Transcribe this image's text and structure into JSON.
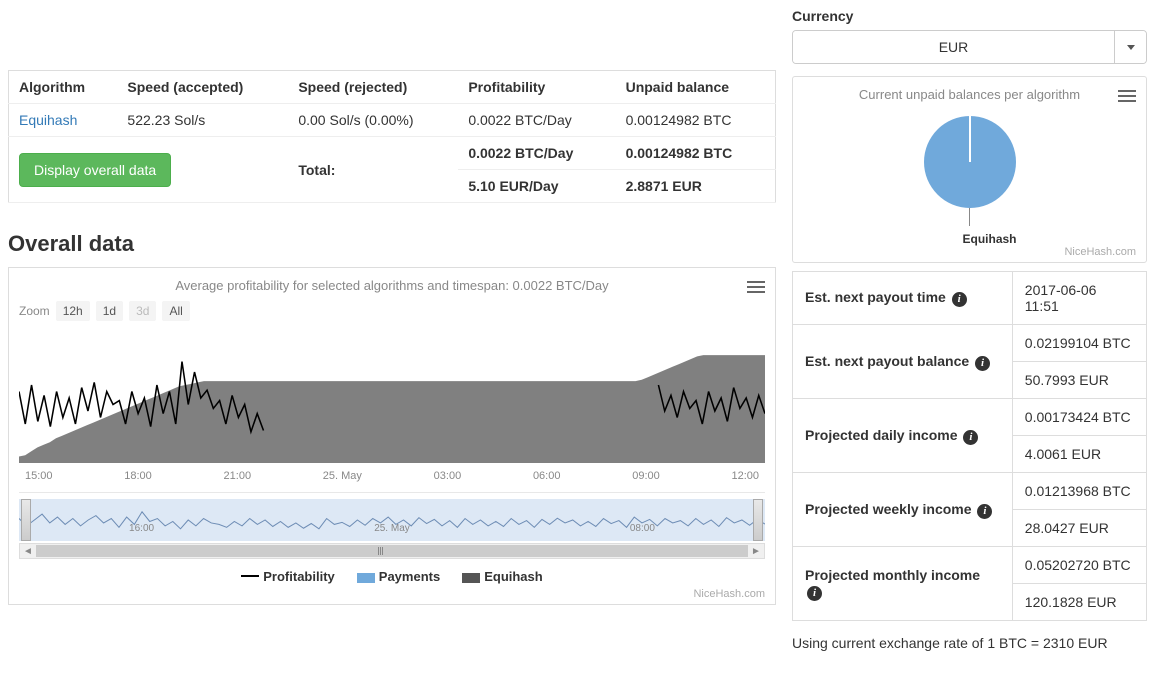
{
  "currency": {
    "label": "Currency",
    "selected": "EUR"
  },
  "algo_table": {
    "headers": [
      "Algorithm",
      "Speed (accepted)",
      "Speed (rejected)",
      "Profitability",
      "Unpaid balance"
    ],
    "row": {
      "algorithm": "Equihash",
      "speed_accepted": "522.23 Sol/s",
      "speed_rejected": "0.00 Sol/s (0.00%)",
      "profitability": "0.0022 BTC/Day",
      "unpaid_balance": "0.00124982 BTC"
    },
    "button_label": "Display overall data",
    "total_label": "Total:",
    "total_profit_btc": "0.0022 BTC/Day",
    "total_balance_btc": "0.00124982 BTC",
    "total_profit_eur": "5.10 EUR/Day",
    "total_balance_eur": "2.8871 EUR"
  },
  "pie_card": {
    "title": "Current unpaid balances per algorithm",
    "slice_color": "#70a9db",
    "slice_label": "Equihash",
    "brand": "NiceHash.com"
  },
  "overall": {
    "section_title": "Overall data",
    "chart_title": "Average profitability for selected algorithms and timespan: 0.0022 BTC/Day",
    "zoom_label": "Zoom",
    "zoom_buttons": [
      "12h",
      "1d",
      "3d",
      "All"
    ],
    "x_ticks": [
      "15:00",
      "18:00",
      "21:00",
      "25. May",
      "03:00",
      "06:00",
      "09:00",
      "12:00"
    ],
    "nav_ticks": [
      "16:00",
      "25. May",
      "08:00"
    ],
    "legend": {
      "profitability": "Profitability",
      "payments": "Payments",
      "equihash": "Equihash"
    },
    "brand": "NiceHash.com",
    "colors": {
      "line": "#000000",
      "area": "#6a6a6a",
      "nav_bg": "#dde8f5",
      "nav_line": "#6e8db5"
    },
    "profitability_series": [
      0.55,
      0.3,
      0.6,
      0.32,
      0.52,
      0.28,
      0.55,
      0.35,
      0.5,
      0.3,
      0.58,
      0.4,
      0.62,
      0.35,
      0.55,
      0.45,
      0.48,
      0.3,
      0.55,
      0.38,
      0.5,
      0.28,
      0.6,
      0.38,
      0.55,
      0.3,
      0.78,
      0.45,
      0.7,
      0.5,
      0.56,
      0.42,
      0.48,
      0.3,
      0.52,
      0.35,
      0.45,
      0.24,
      0.38,
      0.25,
      0,
      0,
      0,
      0,
      0,
      0,
      0,
      0,
      0,
      0,
      0,
      0,
      0,
      0,
      0,
      0,
      0,
      0,
      0,
      0,
      0,
      0,
      0,
      0,
      0,
      0,
      0,
      0,
      0,
      0,
      0,
      0,
      0,
      0,
      0,
      0,
      0,
      0,
      0,
      0,
      0,
      0,
      0,
      0,
      0,
      0,
      0,
      0,
      0,
      0,
      0,
      0,
      0,
      0,
      0,
      0,
      0,
      0,
      0,
      0,
      0,
      0,
      0.6,
      0.4,
      0.52,
      0.35,
      0.55,
      0.42,
      0.48,
      0.3,
      0.55,
      0.4,
      0.5,
      0.32,
      0.58,
      0.42,
      0.5,
      0.35,
      0.52,
      0.38
    ],
    "equihash_area": [
      0.05,
      0.06,
      0.09,
      0.12,
      0.14,
      0.16,
      0.19,
      0.21,
      0.23,
      0.25,
      0.27,
      0.29,
      0.31,
      0.33,
      0.35,
      0.37,
      0.39,
      0.41,
      0.43,
      0.45,
      0.47,
      0.49,
      0.51,
      0.53,
      0.55,
      0.57,
      0.59,
      0.6,
      0.61,
      0.62,
      0.63,
      0.63,
      0.63,
      0.63,
      0.63,
      0.63,
      0.63,
      0.63,
      0.63,
      0.63,
      0.63,
      0.63,
      0.63,
      0.63,
      0.63,
      0.63,
      0.63,
      0.63,
      0.63,
      0.63,
      0.63,
      0.63,
      0.63,
      0.63,
      0.63,
      0.63,
      0.63,
      0.63,
      0.63,
      0.63,
      0.63,
      0.63,
      0.63,
      0.63,
      0.63,
      0.63,
      0.63,
      0.63,
      0.63,
      0.63,
      0.63,
      0.63,
      0.63,
      0.63,
      0.63,
      0.63,
      0.63,
      0.63,
      0.63,
      0.63,
      0.63,
      0.63,
      0.63,
      0.63,
      0.63,
      0.63,
      0.63,
      0.63,
      0.63,
      0.63,
      0.63,
      0.63,
      0.63,
      0.63,
      0.63,
      0.63,
      0.63,
      0.63,
      0.63,
      0.63,
      0.63,
      0.64,
      0.66,
      0.68,
      0.7,
      0.72,
      0.74,
      0.76,
      0.78,
      0.8,
      0.82,
      0.83,
      0.83,
      0.83,
      0.83,
      0.83,
      0.83,
      0.83,
      0.83,
      0.83,
      0.83,
      0.83
    ],
    "nav_series": [
      0.55,
      0.3,
      0.5,
      0.7,
      0.4,
      0.6,
      0.35,
      0.55,
      0.3,
      0.5,
      0.65,
      0.4,
      0.55,
      0.25,
      0.6,
      0.35,
      0.78,
      0.45,
      0.55,
      0.3,
      0.45,
      0.2,
      0.5,
      0.3,
      0.55,
      0.4,
      0.35,
      0.25,
      0.45,
      0.3,
      0.55,
      0.35,
      0.5,
      0.28,
      0.45,
      0.25,
      0.4,
      0.22,
      0.38,
      0.2,
      0.55,
      0.35,
      0.42,
      0.28,
      0.5,
      0.32,
      0.55,
      0.4,
      0.6,
      0.35,
      0.5,
      0.3,
      0.58,
      0.38,
      0.52,
      0.3,
      0.48,
      0.25,
      0.55,
      0.35,
      0.5,
      0.3,
      0.45,
      0.28,
      0.55,
      0.35,
      0.48,
      0.25,
      0.52,
      0.35,
      0.56,
      0.4,
      0.5,
      0.3,
      0.45,
      0.28,
      0.55,
      0.38,
      0.48,
      0.25,
      0.6,
      0.4,
      0.52,
      0.3,
      0.55,
      0.4,
      0.48,
      0.3,
      0.55,
      0.35,
      0.5,
      0.28,
      0.58,
      0.4,
      0.5,
      0.32,
      0.52,
      0.36
    ]
  },
  "projections": {
    "rows": [
      {
        "label": "Est. next payout time",
        "values": [
          "2017-06-06 11:51"
        ]
      },
      {
        "label": "Est. next payout balance",
        "values": [
          "0.02199104 BTC",
          "50.7993 EUR"
        ]
      },
      {
        "label": "Projected daily income",
        "values": [
          "0.00173424 BTC",
          "4.0061 EUR"
        ]
      },
      {
        "label": "Projected weekly income",
        "values": [
          "0.01213968 BTC",
          "28.0427 EUR"
        ]
      },
      {
        "label": "Projected monthly income",
        "values": [
          "0.05202720 BTC",
          "120.1828 EUR"
        ]
      }
    ],
    "footnote": "Using current exchange rate of 1 BTC = 2310 EUR"
  }
}
